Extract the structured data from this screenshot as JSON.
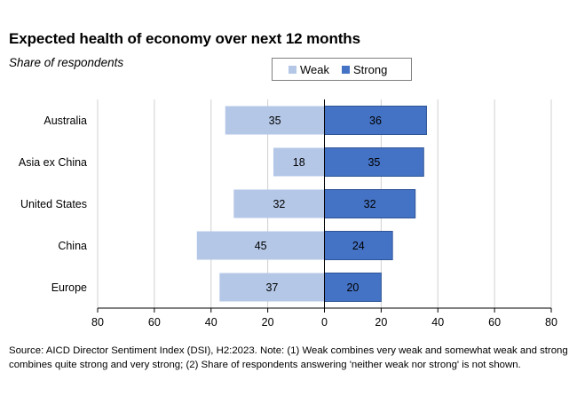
{
  "title": "Expected health of economy over next 12 months",
  "subtitle": "Share of respondents",
  "source": "Source: AICD Director Sentiment Index (DSI), H2:2023.  Note: (1) Weak combines very weak and somewhat weak and strong combines quite strong and very strong; (2) Share of respondents answering 'neither weak nor strong' is not shown.",
  "colors": {
    "weak": "#b4c7e7",
    "strong": "#4472c4",
    "strong_edge": "#2f5597",
    "grid": "#d0d0d0",
    "axis": "#000000"
  },
  "chart_data": {
    "type": "bar",
    "orientation": "horizontal-diverging",
    "title": "Expected health of economy over next 12 months",
    "subtitle": "Share of respondents",
    "categories": [
      "Australia",
      "Asia ex China",
      "United States",
      "China",
      "Europe"
    ],
    "series": [
      {
        "name": "Weak",
        "values": [
          35,
          18,
          32,
          45,
          37
        ],
        "direction": "left"
      },
      {
        "name": "Strong",
        "values": [
          36,
          35,
          32,
          24,
          20
        ],
        "direction": "right"
      }
    ],
    "xlim": [
      -80,
      80
    ],
    "xticks": [
      -80,
      -60,
      -40,
      -20,
      0,
      20,
      40,
      60,
      80
    ],
    "xtick_labels": [
      "80",
      "60",
      "40",
      "20",
      "0",
      "20",
      "40",
      "60",
      "80"
    ],
    "legend": [
      "Weak",
      "Strong"
    ],
    "legend_position": "top-center",
    "grid": true
  }
}
